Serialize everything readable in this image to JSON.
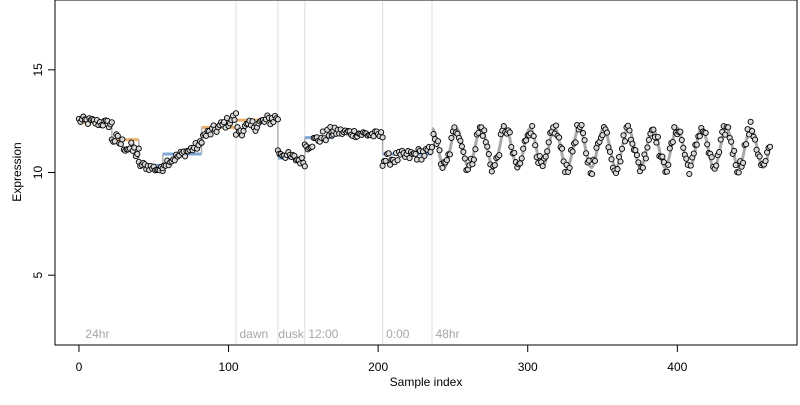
{
  "chart_data": {
    "type": "scatter",
    "title": "",
    "xlabel": "Sample index",
    "ylabel": "Expression",
    "xlim": [
      -16,
      480
    ],
    "ylim": [
      1.6,
      18.4
    ],
    "x_ticks": [
      0,
      100,
      200,
      300,
      400
    ],
    "y_ticks": [
      5,
      10,
      15
    ],
    "grid": false,
    "vlines": [
      105,
      133,
      151,
      203,
      236
    ],
    "region_labels": [
      {
        "text": "24hr",
        "x": 3
      },
      {
        "text": "dawn",
        "x": 106
      },
      {
        "text": "dusk",
        "x": 132
      },
      {
        "text": "12:00",
        "x": 152
      },
      {
        "text": "0:00",
        "x": 204
      },
      {
        "text": "48hr",
        "x": 237
      }
    ],
    "point_colors": {
      "neutral": "#d9d9d9",
      "high": "#f5c07a",
      "low": "#a9c9ea"
    },
    "fit_line_color": "#a9a9a9",
    "step_colors": {
      "up": "#e8b06a",
      "down": "#7fa7d6"
    },
    "steps": [
      {
        "x0": 0,
        "x1": 22,
        "y": 12.45,
        "dir": "up"
      },
      {
        "x0": 22,
        "x1": 40,
        "y": 11.6,
        "dir": "up"
      },
      {
        "x0": 40,
        "x1": 56,
        "y": 10.35,
        "dir": "down"
      },
      {
        "x0": 56,
        "x1": 82,
        "y": 10.9,
        "dir": "down"
      },
      {
        "x0": 82,
        "x1": 105,
        "y": 12.2,
        "dir": "up"
      },
      {
        "x0": 105,
        "x1": 133,
        "y": 12.55,
        "dir": "up"
      },
      {
        "x0": 133,
        "x1": 151,
        "y": 10.7,
        "dir": "down"
      },
      {
        "x0": 151,
        "x1": 170,
        "y": 11.7,
        "dir": "down"
      },
      {
        "x0": 170,
        "x1": 203,
        "y": 11.9,
        "dir": "up"
      },
      {
        "x0": 203,
        "x1": 236,
        "y": 10.9,
        "dir": "down"
      }
    ],
    "oscillation": {
      "x_start": 236,
      "x_end": 462,
      "center": 11.2,
      "amplitude": 0.95,
      "period": 16.4
    },
    "point_segments": [
      {
        "x0": 0,
        "x1": 22,
        "y0": 12.55,
        "y1": 12.35,
        "noise": 0.2
      },
      {
        "x0": 22,
        "x1": 40,
        "y0": 11.7,
        "y1": 10.9,
        "noise": 0.35
      },
      {
        "x0": 40,
        "x1": 56,
        "y0": 10.4,
        "y1": 10.1,
        "noise": 0.18
      },
      {
        "x0": 56,
        "x1": 82,
        "y0": 10.4,
        "y1": 11.4,
        "noise": 0.2
      },
      {
        "x0": 82,
        "x1": 105,
        "y0": 11.7,
        "y1": 12.7,
        "noise": 0.25
      },
      {
        "x0": 105,
        "x1": 133,
        "y0": 12.0,
        "y1": 12.7,
        "noise": 0.3
      },
      {
        "x0": 133,
        "x1": 151,
        "y0": 11.0,
        "y1": 10.5,
        "noise": 0.2
      },
      {
        "x0": 151,
        "x1": 170,
        "y0": 11.3,
        "y1": 12.0,
        "noise": 0.3
      },
      {
        "x0": 170,
        "x1": 203,
        "y0": 12.0,
        "y1": 11.8,
        "noise": 0.2
      },
      {
        "x0": 203,
        "x1": 236,
        "y0": 10.6,
        "y1": 11.0,
        "noise": 0.3
      }
    ],
    "oscillation_points": {
      "x_start": 236,
      "x_end": 462,
      "noise": 0.35
    }
  }
}
